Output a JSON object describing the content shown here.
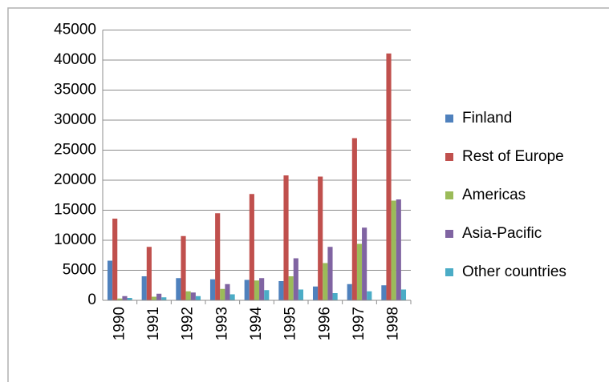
{
  "chart_data": {
    "type": "bar",
    "categories": [
      "1990",
      "1991",
      "1992",
      "1993",
      "1994",
      "1995",
      "1996",
      "1997",
      "1998"
    ],
    "series": [
      {
        "name": "Finland",
        "color": "#4f81bd",
        "values": [
          6600,
          4000,
          3700,
          3500,
          3400,
          3200,
          2300,
          2700,
          2500
        ]
      },
      {
        "name": "Rest of Europe",
        "color": "#c0504d",
        "values": [
          13600,
          8900,
          10700,
          14500,
          17700,
          20800,
          20600,
          27000,
          41100
        ]
      },
      {
        "name": "Americas",
        "color": "#9bbb59",
        "values": [
          300,
          600,
          1500,
          1900,
          3300,
          4000,
          6200,
          9400,
          16600
        ]
      },
      {
        "name": "Asia-Pacific",
        "color": "#8064a2",
        "values": [
          700,
          1100,
          1300,
          2700,
          3700,
          7000,
          8900,
          12100,
          16800
        ]
      },
      {
        "name": "Other countries",
        "color": "#4bacc6",
        "values": [
          400,
          500,
          700,
          1000,
          1700,
          1800,
          1200,
          1500,
          1800
        ]
      }
    ],
    "ylim": [
      0,
      45000
    ],
    "yticks": [
      0,
      5000,
      10000,
      15000,
      20000,
      25000,
      30000,
      35000,
      40000,
      45000
    ],
    "grid": true,
    "legend": "right"
  }
}
